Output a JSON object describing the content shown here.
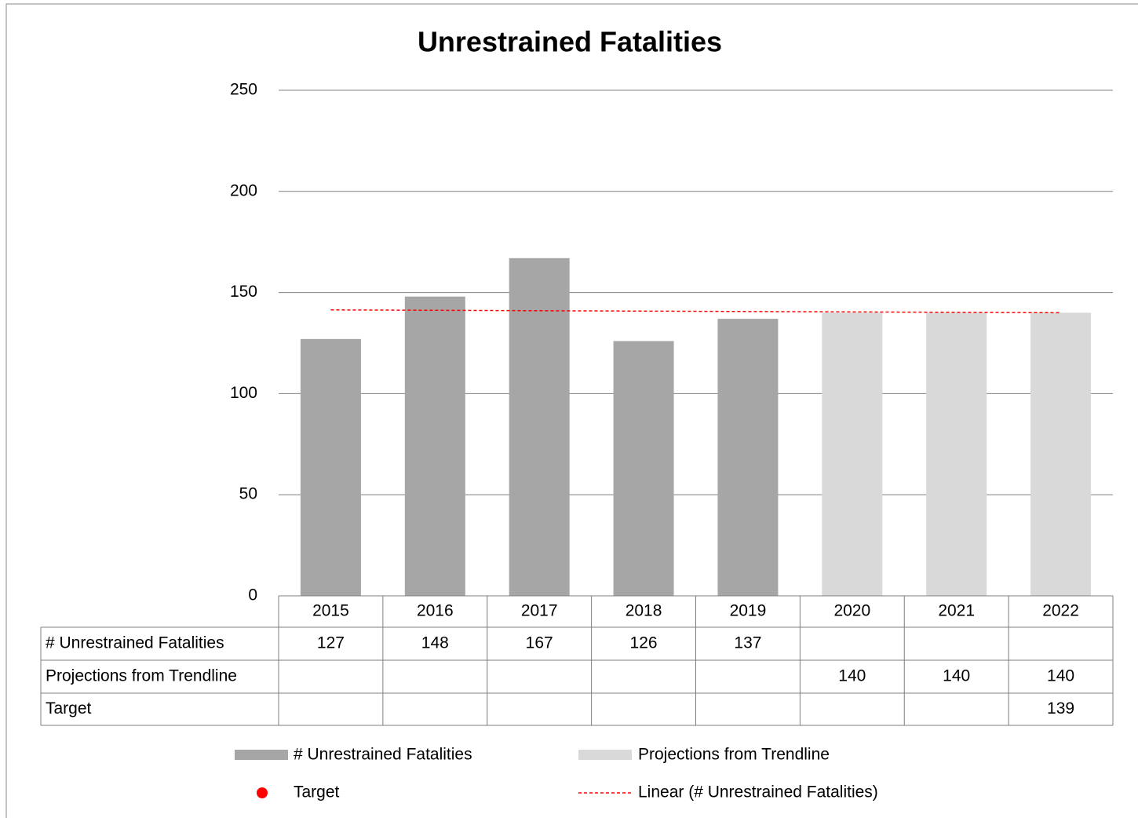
{
  "chart_data": {
    "type": "bar",
    "title": "Unrestrained Fatalities",
    "categories": [
      "2015",
      "2016",
      "2017",
      "2018",
      "2019",
      "2020",
      "2021",
      "2022"
    ],
    "series": [
      {
        "name": "# Unrestrained Fatalities",
        "color": "#a6a6a6",
        "values": [
          127,
          148,
          167,
          126,
          137,
          null,
          null,
          null
        ]
      },
      {
        "name": "Projections from Trendline",
        "color": "#d9d9d9",
        "values": [
          null,
          null,
          null,
          null,
          null,
          140,
          140,
          140
        ]
      },
      {
        "name": "Target",
        "color": "#ff0000",
        "values": [
          null,
          null,
          null,
          null,
          null,
          null,
          null,
          139
        ]
      }
    ],
    "trendline": {
      "name": "Linear (# Unrestrained Fatalities)",
      "color": "#ff0000"
    },
    "ylim": [
      0,
      250
    ],
    "yticks": [
      0,
      50,
      100,
      150,
      200,
      250
    ],
    "grid": true,
    "legend": "bottom"
  }
}
